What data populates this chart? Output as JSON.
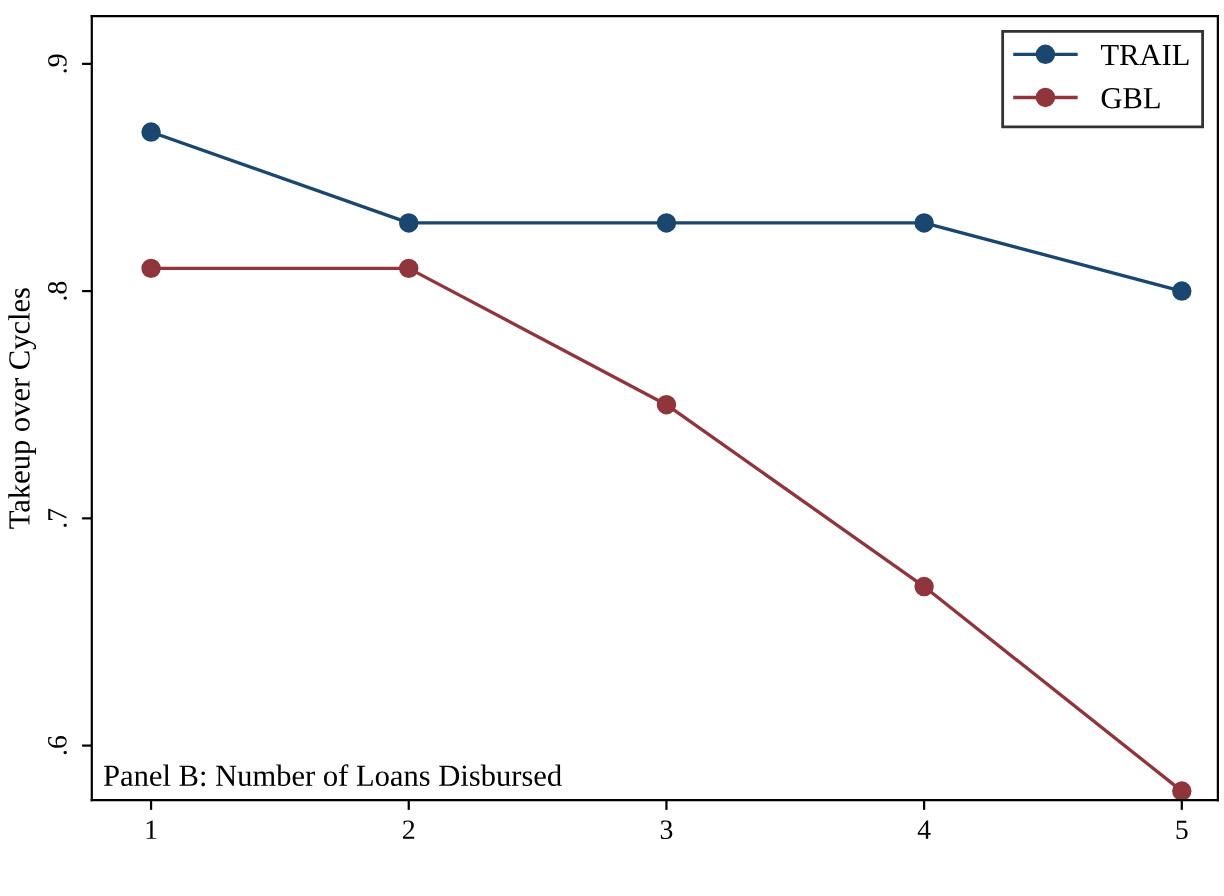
{
  "chart_data": {
    "type": "line",
    "ylabel": "Takeup over Cycles",
    "x": [
      1,
      2,
      3,
      4,
      5
    ],
    "series": [
      {
        "name": "TRAIL",
        "color": "#1a476f",
        "values": [
          0.87,
          0.83,
          0.83,
          0.83,
          0.8
        ]
      },
      {
        "name": "GBL",
        "color": "#90353b",
        "values": [
          0.81,
          0.81,
          0.75,
          0.67,
          0.58
        ]
      }
    ],
    "xlim": [
      0.77,
      5.14
    ],
    "xticks": [
      1,
      2,
      3,
      4,
      5
    ],
    "ylim": [
      0.576,
      0.921
    ],
    "yticks": [
      {
        "value": 0.6,
        "label": ".6"
      },
      {
        "value": 0.7,
        "label": ".7"
      },
      {
        "value": 0.8,
        "label": ".8"
      },
      {
        "value": 0.9,
        "label": ".9"
      }
    ],
    "annotations": [
      "Panel B: Number of Loans Disbursed"
    ],
    "grid": false,
    "legend": "top right",
    "marker": "circle",
    "line_style": "solid"
  }
}
